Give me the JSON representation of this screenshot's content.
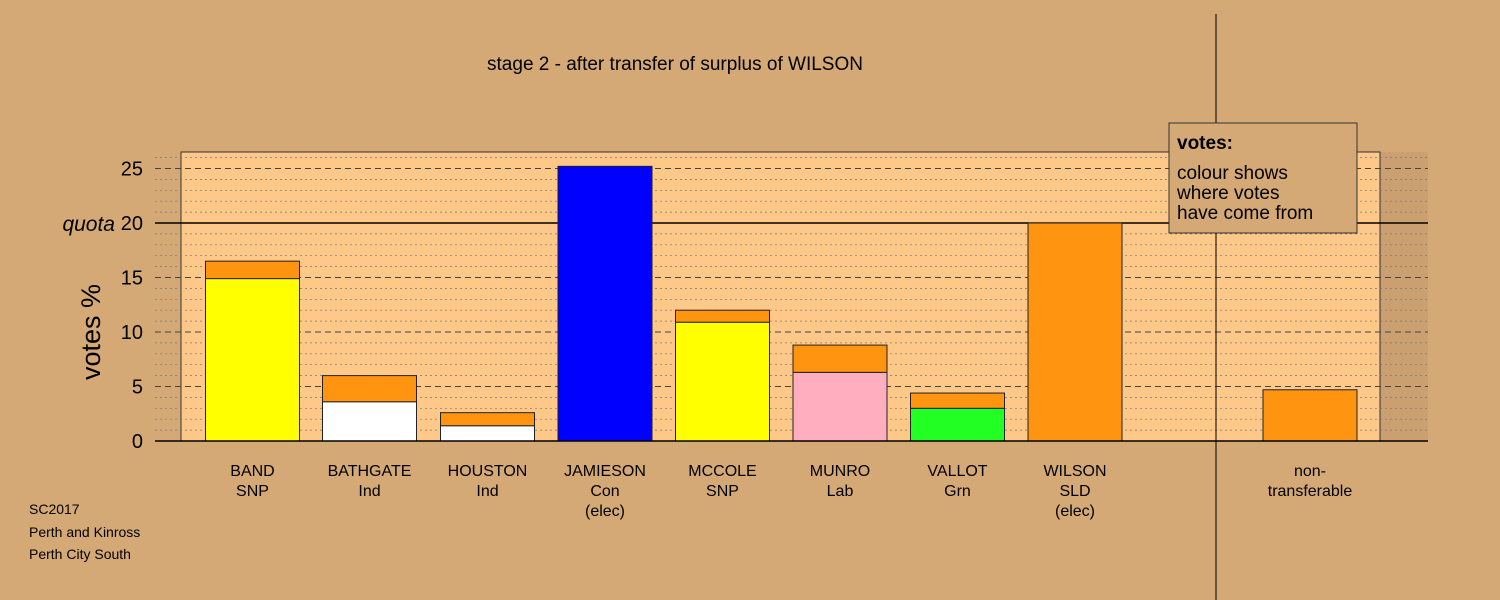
{
  "chart_data": {
    "type": "bar",
    "stacked": true,
    "title": "stage 2 - after transfer of surplus of WILSON",
    "ylabel": "votes %",
    "ylim": [
      0,
      26.5
    ],
    "yticks": [
      "0",
      "5",
      "10",
      "15",
      "20",
      "25"
    ],
    "quota": {
      "label": "quota",
      "value": 20
    },
    "grid": true,
    "categories": [
      {
        "name": "BAND",
        "sub": "SNP",
        "status": ""
      },
      {
        "name": "BATHGATE",
        "sub": "Ind",
        "status": ""
      },
      {
        "name": "HOUSTON",
        "sub": "Ind",
        "status": ""
      },
      {
        "name": "JAMIESON",
        "sub": "Con",
        "status": "(elec)"
      },
      {
        "name": "MCCOLE",
        "sub": "SNP",
        "status": ""
      },
      {
        "name": "MUNRO",
        "sub": "Lab",
        "status": ""
      },
      {
        "name": "VALLOT",
        "sub": "Grn",
        "status": ""
      },
      {
        "name": "WILSON",
        "sub": "SLD",
        "status": "(elec)"
      },
      {
        "name": "non-",
        "sub": "transferable",
        "status": ""
      }
    ],
    "segments": [
      [
        {
          "value": 14.9,
          "color": "#ffff00"
        },
        {
          "value": 1.6,
          "color": "#ff9410"
        }
      ],
      [
        {
          "value": 3.6,
          "color": "#ffffff"
        },
        {
          "value": 2.4,
          "color": "#ff9410"
        }
      ],
      [
        {
          "value": 1.4,
          "color": "#ffffff"
        },
        {
          "value": 1.2,
          "color": "#ff9410"
        }
      ],
      [
        {
          "value": 25.2,
          "color": "#0000ff"
        }
      ],
      [
        {
          "value": 10.9,
          "color": "#ffff00"
        },
        {
          "value": 1.1,
          "color": "#ff9410"
        }
      ],
      [
        {
          "value": 6.3,
          "color": "#ffaec0"
        },
        {
          "value": 2.5,
          "color": "#ff9410"
        }
      ],
      [
        {
          "value": 3.0,
          "color": "#22ff22"
        },
        {
          "value": 1.4,
          "color": "#ff9410"
        }
      ],
      [
        {
          "value": 20.0,
          "color": "#ff9410"
        }
      ],
      [
        {
          "value": 4.7,
          "color": "#ff9410"
        }
      ]
    ],
    "legend": {
      "title": "votes:",
      "lines": [
        "colour shows",
        "where votes",
        "have come from"
      ]
    }
  },
  "footer": [
    "SC2017",
    "Perth and Kinross",
    "Perth City South"
  ],
  "colors": {
    "background": "#d4a976",
    "plot_background": "#fdc888",
    "shaded_band": "#caa070"
  }
}
